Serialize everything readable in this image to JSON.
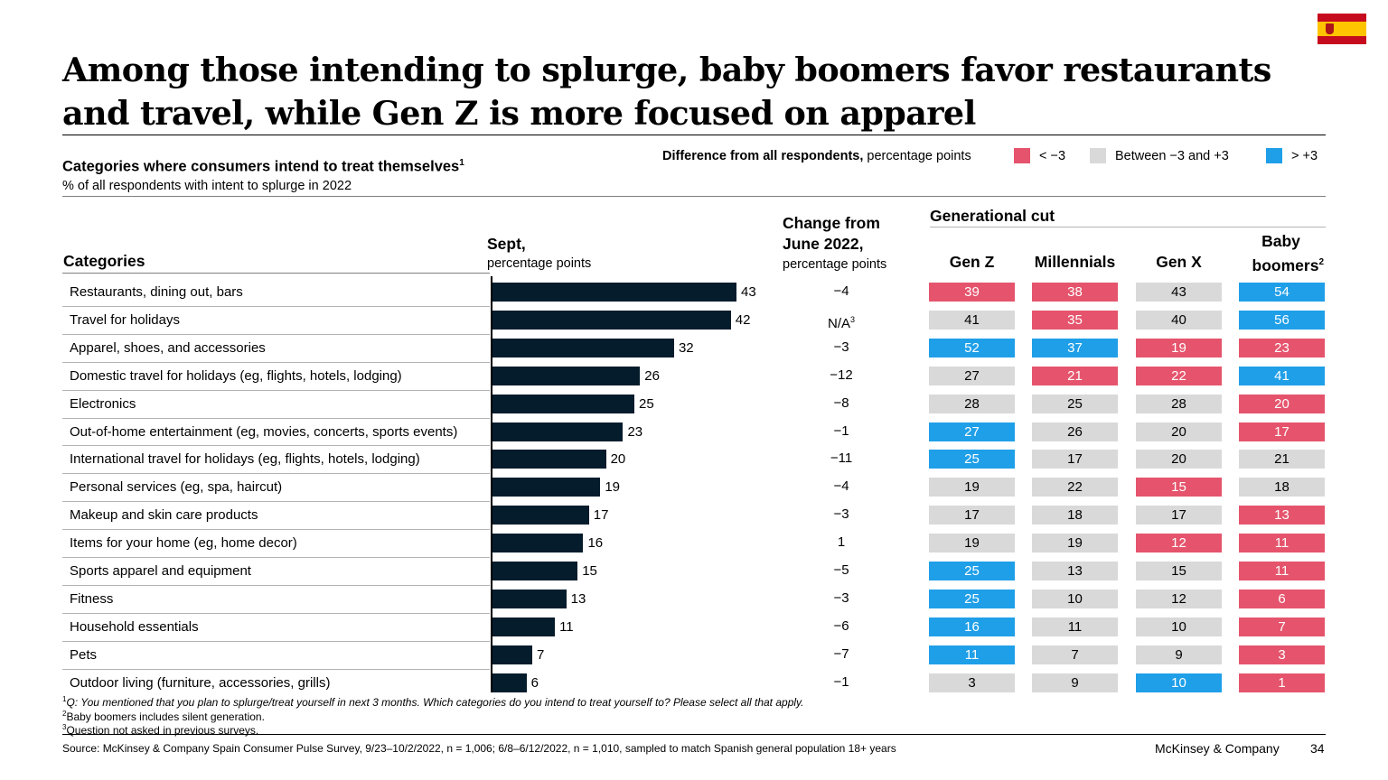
{
  "title": "Among those intending to splurge, baby boomers favor restaurants and travel, while Gen Z is more focused on apparel",
  "subtitle": "Categories where consumers intend to treat themselves",
  "subtitle_sup": "1",
  "subtitle_note": "% of all respondents with intent to splurge in 2022",
  "legend": {
    "title_bold": "Difference from all respondents,",
    "title_rest": " percentage points",
    "items": [
      {
        "label": "< −3",
        "color": "#e5546c"
      },
      {
        "label": "Between −3 and +3",
        "color": "#d9d9d9"
      },
      {
        "label": "> +3",
        "color": "#1f9fe8"
      }
    ]
  },
  "headers": {
    "categories": "Categories",
    "sept_bold": "Sept,",
    "sept_note": "percentage points",
    "change_line1": "Change from",
    "change_line2": "June 2022,",
    "change_note": "percentage points",
    "generational": "Generational cut",
    "genz": "Gen Z",
    "millennials": "Millennials",
    "genx": "Gen X",
    "boomers_line1": "Baby",
    "boomers_line2": "boomers",
    "boomers_sup": "2"
  },
  "chart_data": {
    "type": "bar",
    "orientation": "horizontal",
    "title": "Categories where consumers intend to treat themselves",
    "xlabel": "Sept, percentage points",
    "categories": [
      "Restaurants, dining out, bars",
      "Travel for holidays",
      "Apparel, shoes, and accessories",
      "Domestic travel for holidays (eg, flights, hotels, lodging)",
      "Electronics",
      "Out-of-home entertainment (eg, movies, concerts, sports events)",
      "International travel for holidays (eg, flights, hotels, lodging)",
      "Personal services (eg, spa, haircut)",
      "Makeup and skin care products",
      "Items for your home (eg, home decor)",
      "Sports apparel and equipment",
      "Fitness",
      "Household essentials",
      "Pets",
      "Outdoor living (furniture, accessories, grills)"
    ],
    "values": [
      43,
      42,
      32,
      26,
      25,
      23,
      20,
      19,
      17,
      16,
      15,
      13,
      11,
      7,
      6
    ],
    "xlim": [
      0,
      43
    ],
    "change": [
      "−4",
      "N/A",
      "−3",
      "−12",
      "−8",
      "−1",
      "−11",
      "−4",
      "−3",
      "1",
      "−5",
      "−3",
      "−6",
      "−7",
      "−1"
    ],
    "change_sup": [
      "",
      "3",
      "",
      "",
      "",
      "",
      "",
      "",
      "",
      "",
      "",
      "",
      "",
      "",
      ""
    ],
    "generations": [
      "Gen Z",
      "Millennials",
      "Gen X",
      "Baby boomers"
    ],
    "generational": [
      [
        39,
        38,
        43,
        54
      ],
      [
        41,
        35,
        40,
        56
      ],
      [
        52,
        37,
        19,
        23
      ],
      [
        27,
        21,
        22,
        41
      ],
      [
        28,
        25,
        28,
        20
      ],
      [
        27,
        26,
        20,
        17
      ],
      [
        25,
        17,
        20,
        21
      ],
      [
        19,
        22,
        15,
        18
      ],
      [
        17,
        18,
        17,
        13
      ],
      [
        19,
        19,
        12,
        11
      ],
      [
        25,
        13,
        15,
        11
      ],
      [
        25,
        10,
        12,
        6
      ],
      [
        16,
        11,
        10,
        7
      ],
      [
        11,
        7,
        9,
        3
      ],
      [
        3,
        9,
        10,
        1
      ]
    ],
    "generational_class": [
      [
        "neg",
        "neg",
        "mid",
        "pos"
      ],
      [
        "mid",
        "neg",
        "mid",
        "pos"
      ],
      [
        "pos",
        "pos",
        "neg",
        "neg"
      ],
      [
        "mid",
        "neg",
        "neg",
        "pos"
      ],
      [
        "mid",
        "mid",
        "mid",
        "neg"
      ],
      [
        "pos",
        "mid",
        "mid",
        "neg"
      ],
      [
        "pos",
        "mid",
        "mid",
        "mid"
      ],
      [
        "mid",
        "mid",
        "neg",
        "mid"
      ],
      [
        "mid",
        "mid",
        "mid",
        "neg"
      ],
      [
        "mid",
        "mid",
        "neg",
        "neg"
      ],
      [
        "pos",
        "mid",
        "mid",
        "neg"
      ],
      [
        "pos",
        "mid",
        "mid",
        "neg"
      ],
      [
        "pos",
        "mid",
        "mid",
        "neg"
      ],
      [
        "pos",
        "mid",
        "mid",
        "neg"
      ],
      [
        "mid",
        "mid",
        "pos",
        "neg"
      ]
    ]
  },
  "footnotes": {
    "f1_sup": "1",
    "f1": "Q: You mentioned that you plan to splurge/treat yourself in next 3 months. Which categories do you intend to treat yourself to? Please select all that apply.",
    "f2_sup": "2",
    "f2": "Baby boomers includes silent generation.",
    "f3_sup": "3",
    "f3": "Question not asked in previous surveys."
  },
  "source": "Source: McKinsey & Company Spain Consumer Pulse Survey, 9/23–10/2/2022, n = 1,006; 6/8–6/12/2022, n = 1,010, sampled to match Spanish general population 18+ years",
  "brand": "McKinsey & Company",
  "page_number": "34"
}
